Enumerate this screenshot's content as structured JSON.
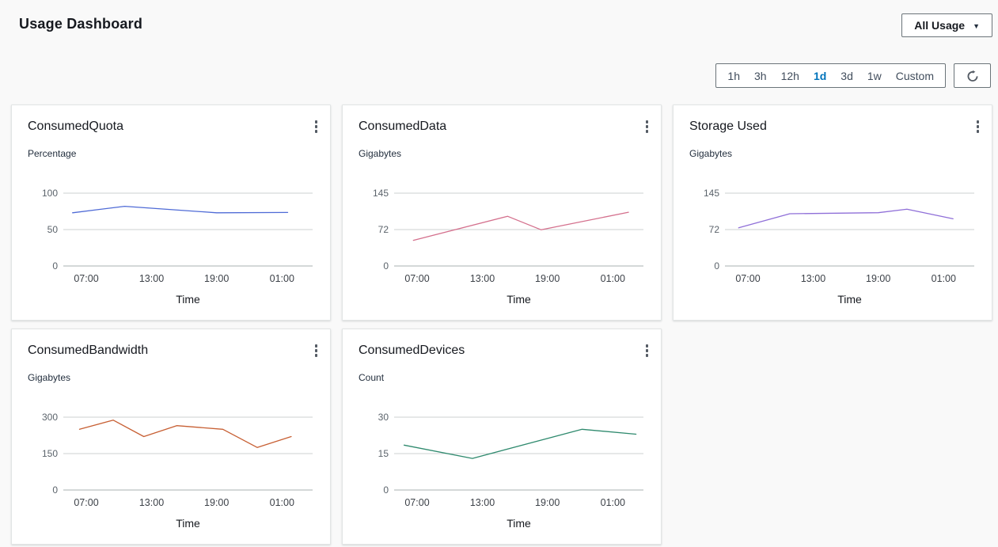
{
  "page": {
    "title": "Usage Dashboard",
    "background": "#f9f9f9"
  },
  "header": {
    "usage_dropdown": {
      "label": "All Usage"
    }
  },
  "icons": {
    "dropdown": "▼",
    "refresh": "circular-arrow-clockwise",
    "card_menu": "vertical-ellipsis"
  },
  "toolbar": {
    "time_ranges": [
      "1h",
      "3h",
      "12h",
      "1d",
      "3d",
      "1w",
      "Custom"
    ],
    "selected_range": "1d",
    "selected_color": "#0073bb"
  },
  "chart_data": [
    {
      "type": "line",
      "title": "ConsumedQuota",
      "ylabel": "Percentage",
      "xlabel": "Time",
      "color": "#4f6bd6",
      "y_ticks": [
        100,
        50,
        0
      ],
      "y_max": 100,
      "x_tick_labels": [
        "07:00",
        "13:00",
        "19:00",
        "01:00"
      ],
      "x_tick_positions": [
        0.092,
        0.354,
        0.615,
        0.877
      ],
      "points": [
        [
          0.037,
          73
        ],
        [
          0.246,
          82
        ],
        [
          0.615,
          73
        ],
        [
          0.9,
          73.5
        ]
      ]
    },
    {
      "type": "line",
      "title": "ConsumedData",
      "ylabel": "Gigabytes",
      "xlabel": "Time",
      "color": "#d4708d",
      "y_ticks": [
        145,
        72,
        0
      ],
      "y_max": 145,
      "x_tick_labels": [
        "07:00",
        "13:00",
        "19:00",
        "01:00"
      ],
      "x_tick_positions": [
        0.092,
        0.354,
        0.615,
        0.877
      ],
      "points": [
        [
          0.077,
          51
        ],
        [
          0.455,
          99
        ],
        [
          0.59,
          72
        ],
        [
          0.94,
          107
        ]
      ]
    },
    {
      "type": "line",
      "title": "Storage Used",
      "ylabel": "Gigabytes",
      "xlabel": "Time",
      "color": "#8f6fd8",
      "y_ticks": [
        145,
        72,
        0
      ],
      "y_max": 145,
      "x_tick_labels": [
        "07:00",
        "13:00",
        "19:00",
        "01:00"
      ],
      "x_tick_positions": [
        0.092,
        0.354,
        0.615,
        0.877
      ],
      "points": [
        [
          0.055,
          76
        ],
        [
          0.26,
          104
        ],
        [
          0.615,
          106
        ],
        [
          0.73,
          113
        ],
        [
          0.915,
          94
        ]
      ]
    },
    {
      "type": "line",
      "title": "ConsumedBandwidth",
      "ylabel": "Gigabytes",
      "xlabel": "Time",
      "color": "#c75f33",
      "y_ticks": [
        300,
        150,
        0
      ],
      "y_max": 300,
      "x_tick_labels": [
        "07:00",
        "13:00",
        "19:00",
        "01:00"
      ],
      "x_tick_positions": [
        0.092,
        0.354,
        0.615,
        0.877
      ],
      "points": [
        [
          0.065,
          250
        ],
        [
          0.2,
          288
        ],
        [
          0.323,
          220
        ],
        [
          0.455,
          265
        ],
        [
          0.64,
          250
        ],
        [
          0.778,
          175
        ],
        [
          0.914,
          220
        ]
      ]
    },
    {
      "type": "line",
      "title": "ConsumedDevices",
      "ylabel": "Count",
      "xlabel": "Time",
      "color": "#2f8a6e",
      "y_ticks": [
        30,
        15,
        0
      ],
      "y_max": 30,
      "x_tick_labels": [
        "07:00",
        "13:00",
        "19:00",
        "01:00"
      ],
      "x_tick_positions": [
        0.092,
        0.354,
        0.615,
        0.877
      ],
      "points": [
        [
          0.04,
          18.5
        ],
        [
          0.314,
          13
        ],
        [
          0.754,
          25
        ],
        [
          0.97,
          23
        ]
      ]
    }
  ]
}
